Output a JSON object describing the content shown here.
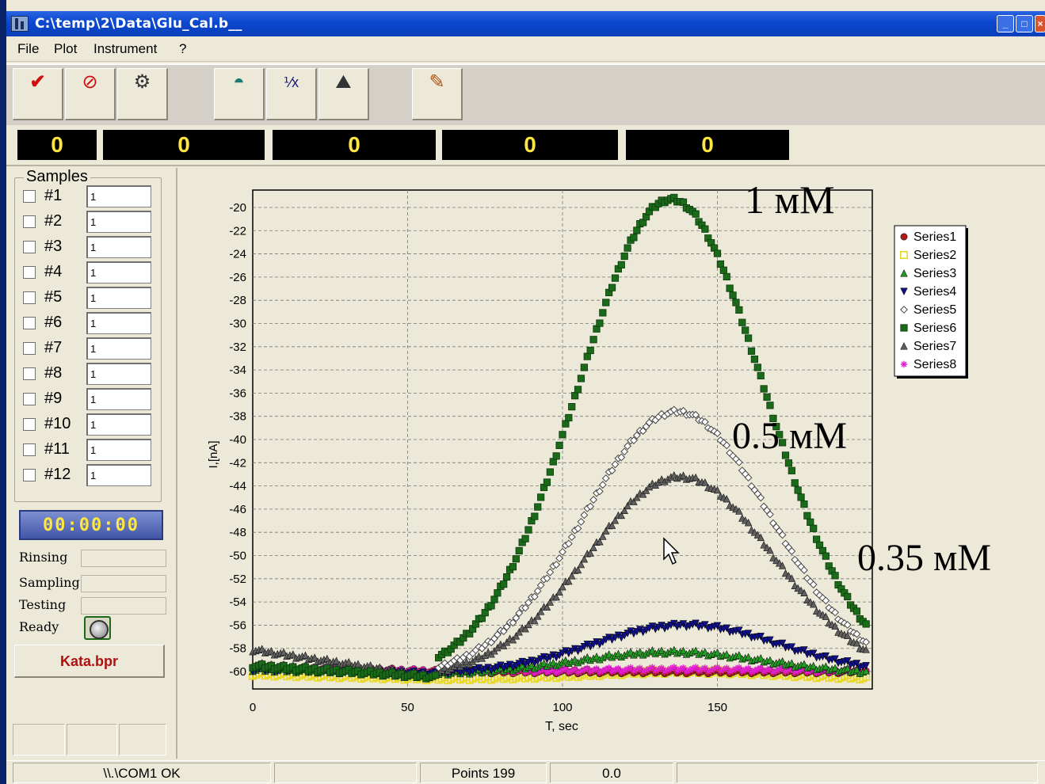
{
  "window": {
    "title": "C:\\temp\\2\\Data\\Glu_Cal.b__"
  },
  "menu": [
    "File",
    "Plot",
    "Instrument",
    "?"
  ],
  "counters": [
    "0",
    "0",
    "0",
    "0",
    "0"
  ],
  "samples": {
    "title": "Samples",
    "rows": [
      {
        "label": "#1",
        "value": "1"
      },
      {
        "label": "#2",
        "value": "1"
      },
      {
        "label": "#3",
        "value": "1"
      },
      {
        "label": "#4",
        "value": "1"
      },
      {
        "label": "#5",
        "value": "1"
      },
      {
        "label": "#6",
        "value": "1"
      },
      {
        "label": "#7",
        "value": "1"
      },
      {
        "label": "#8",
        "value": "1"
      },
      {
        "label": "#9",
        "value": "1"
      },
      {
        "label": "#10",
        "value": "1"
      },
      {
        "label": "#11",
        "value": "1"
      },
      {
        "label": "#12",
        "value": "1"
      }
    ]
  },
  "timer": "00:00:00",
  "status_labels": {
    "rinsing": "Rinsing",
    "sampling": "Sampling",
    "testing": "Testing",
    "ready": "Ready"
  },
  "project": "Kata.bpr",
  "statusbar": {
    "port": "\\\\.\\COM1 OK",
    "points": "Points 199",
    "value": "0.0"
  },
  "colors": {
    "Series1": "#b01818",
    "Series2": "#e8d820",
    "Series3": "#20a020",
    "Series4": "#10108a",
    "Series5": "#ffffff",
    "Series6": "#1a6a1a",
    "Series7": "#606060",
    "Series8": "#e020d0"
  },
  "chart_data": {
    "type": "scatter",
    "xlabel": "T, sec",
    "ylabel": "I,[nA]",
    "xlim": [
      0,
      200
    ],
    "ylim": [
      -61.5,
      -18.5
    ],
    "xticks": [
      0,
      50,
      100,
      150
    ],
    "yticks": [
      -20,
      -22,
      -24,
      -26,
      -28,
      -30,
      -32,
      -34,
      -36,
      -38,
      -40,
      -42,
      -44,
      -46,
      -48,
      -50,
      -52,
      -54,
      -56,
      -58,
      -60
    ],
    "grid": true,
    "legend": "right",
    "annotations": [
      "1 мМ",
      "0.5 мМ",
      "0.35 мМ"
    ],
    "series": [
      {
        "name": "Series1",
        "marker": "circle",
        "baseline": -60.0,
        "peak": -60.0,
        "center": 135,
        "width": 28
      },
      {
        "name": "Series2",
        "marker": "square-open",
        "baseline": -60.6,
        "peak": -60.0,
        "center": 140,
        "width": 30
      },
      {
        "name": "Series3",
        "marker": "triangle",
        "baseline": -60.2,
        "peak": -58.3,
        "center": 135,
        "width": 30
      },
      {
        "name": "Series4",
        "marker": "triangle-down",
        "baseline": -60.2,
        "peak": -56.0,
        "center": 140,
        "width": 30
      },
      {
        "name": "Series5",
        "marker": "diamond-open",
        "baseline": -60.4,
        "peak": -37.6,
        "center": 137,
        "width": 30
      },
      {
        "name": "Series6",
        "marker": "square",
        "baseline": -60.5,
        "peak": -19.3,
        "center": 135,
        "width": 30
      },
      {
        "name": "Series7",
        "marker": "triangle",
        "baseline": -60.5,
        "peak": -43.2,
        "center": 138,
        "width": 30
      },
      {
        "name": "Series8",
        "marker": "star",
        "baseline": -60.0,
        "peak": -59.8,
        "center": 140,
        "width": 30
      }
    ]
  }
}
